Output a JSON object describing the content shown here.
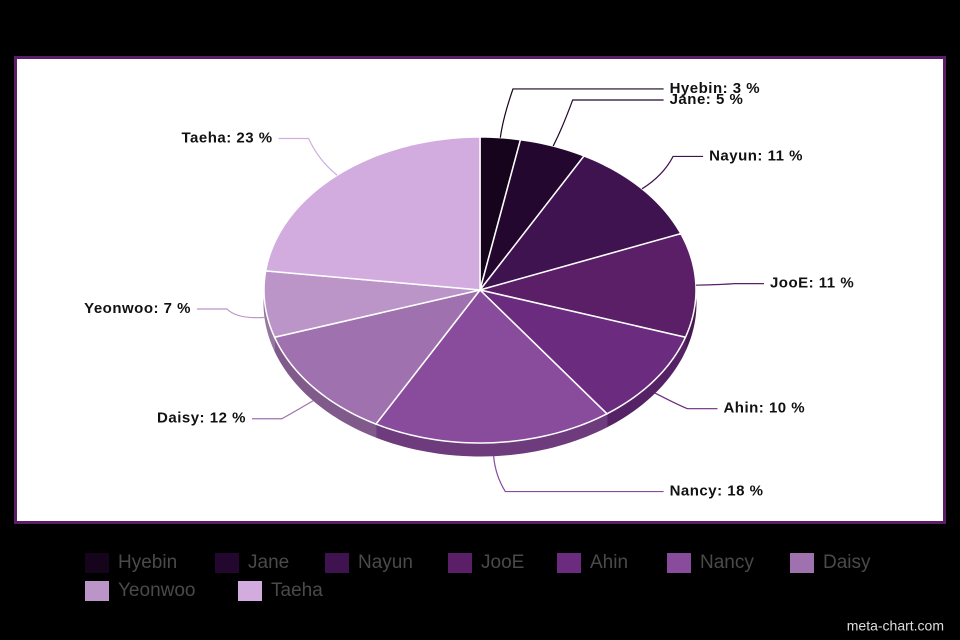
{
  "chart_data": {
    "type": "pie",
    "categories": [
      "Hyebin",
      "Jane",
      "Nayun",
      "JooE",
      "Ahin",
      "Nancy",
      "Daisy",
      "Yeonwoo",
      "Taeha"
    ],
    "values": [
      3,
      5,
      11,
      11,
      10,
      18,
      12,
      7,
      23
    ],
    "value_labels": [
      "Hyebin: 3 %",
      "Jane: 5 %",
      "Nayun: 11 %",
      "JooE: 11 %",
      "Ahin: 10 %",
      "Nancy: 18 %",
      "Daisy: 12 %",
      "Yeonwoo: 7 %",
      "Taeha: 23 %"
    ],
    "colors": [
      "#16041c",
      "#24072e",
      "#3f1350",
      "#5a1f67",
      "#6b2b7f",
      "#894b9c",
      "#9f71ae",
      "#bb95c8",
      "#d2acdf"
    ],
    "legend": "bottom"
  },
  "watermark": "meta-chart.com"
}
